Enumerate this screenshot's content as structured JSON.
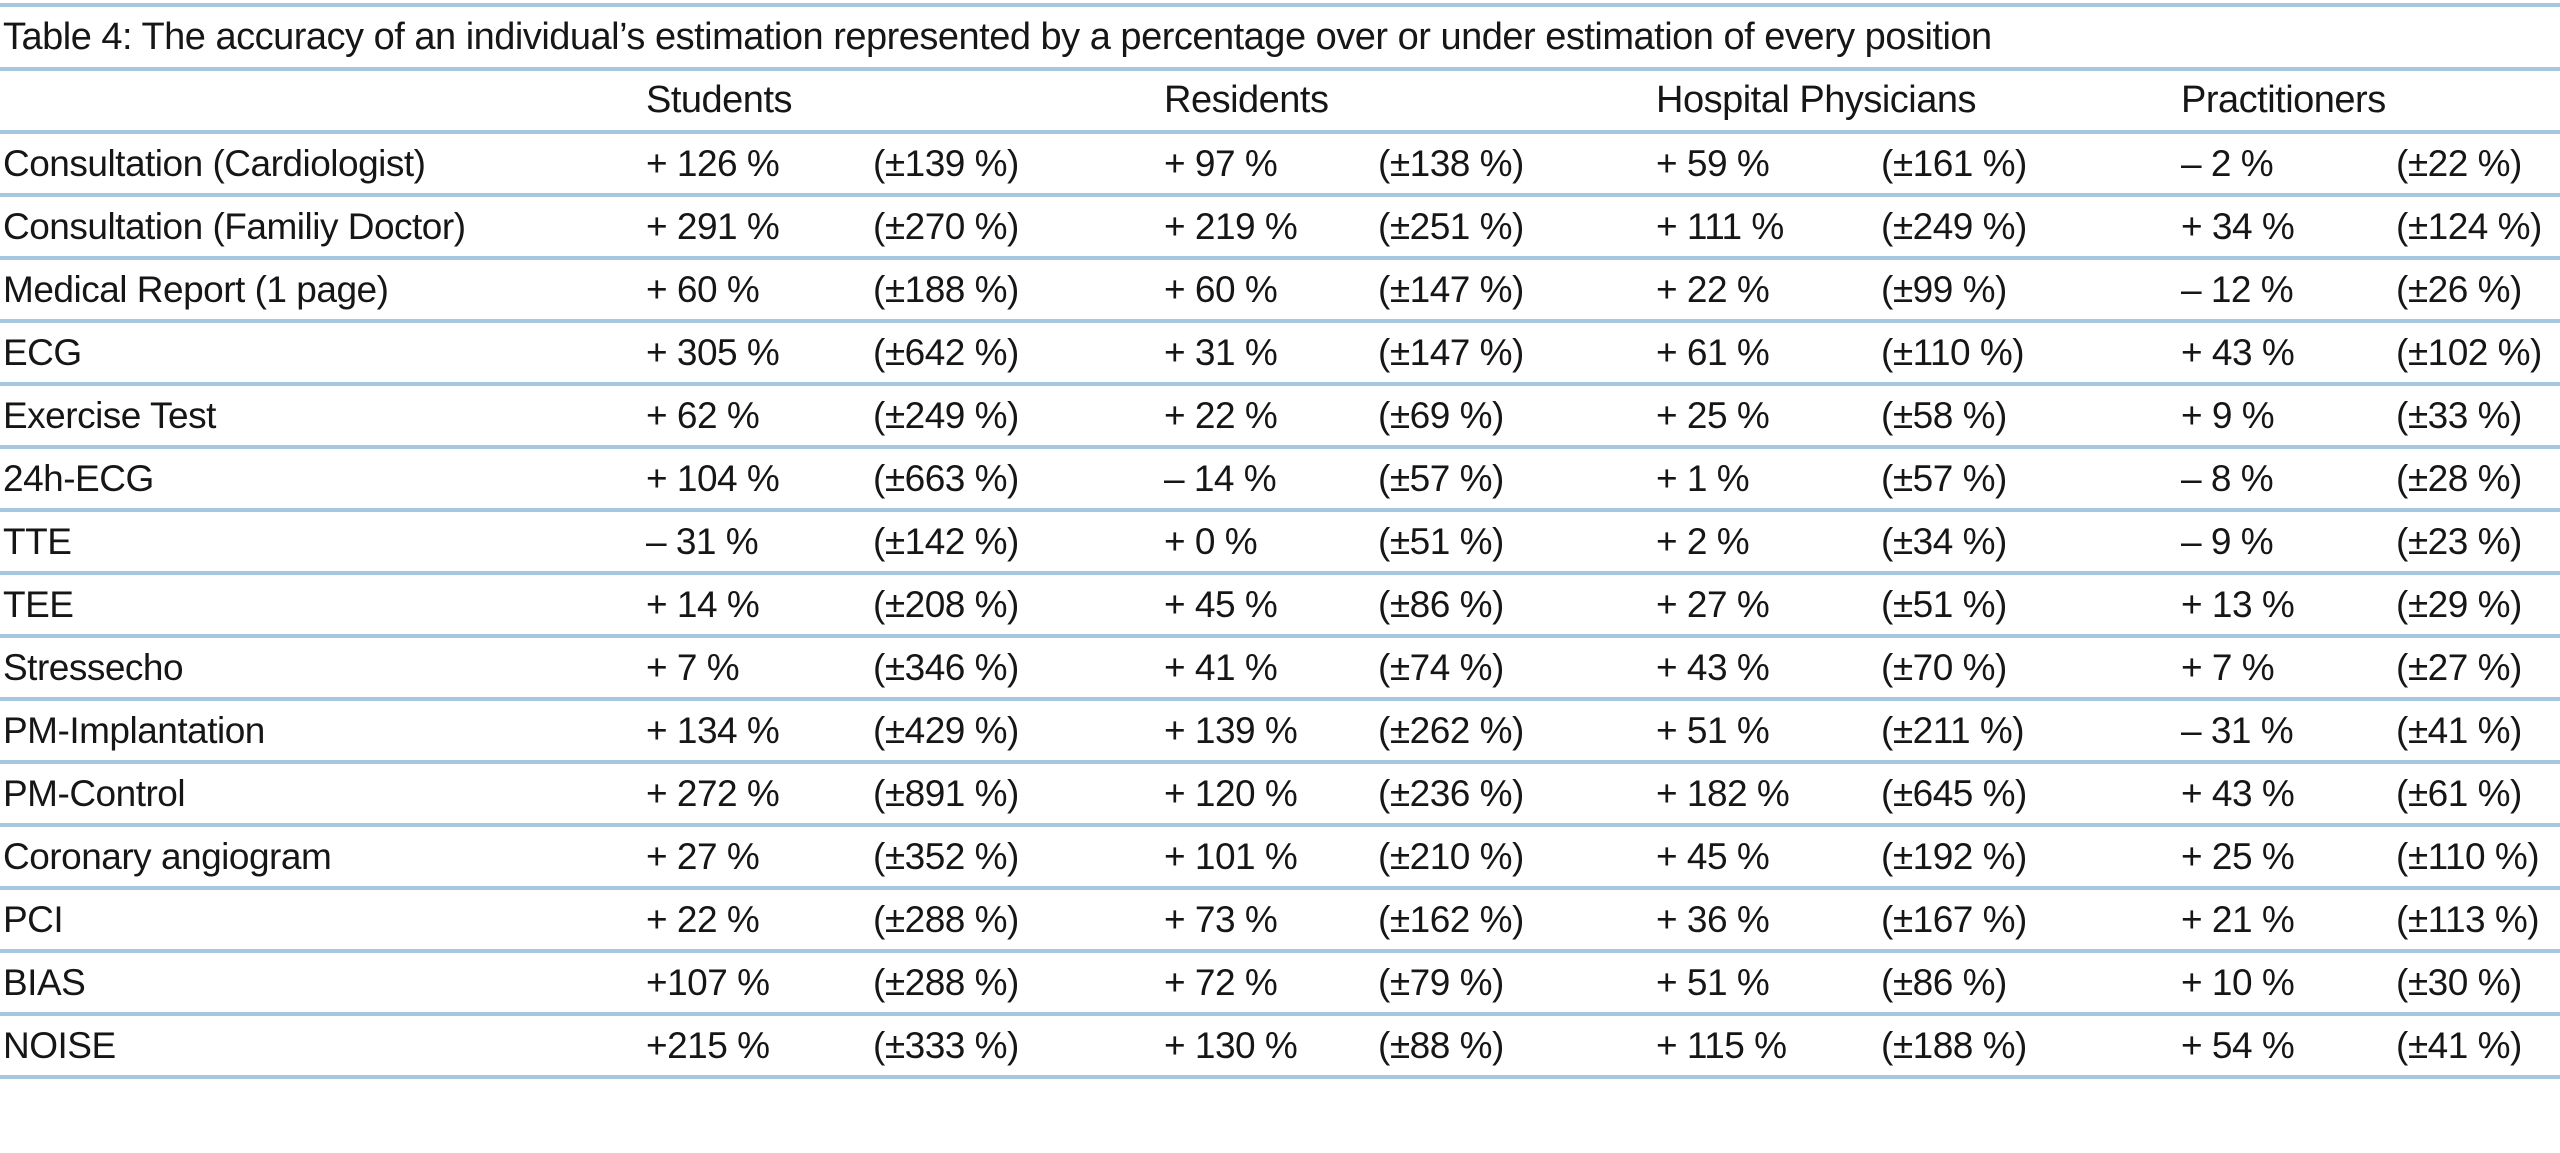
{
  "style": {
    "rule_color": "#a6c7e0",
    "text_color": "#161616",
    "background": "#ffffff"
  },
  "table": {
    "caption": "Table 4: The accuracy of an individual’s estimation represented by a percentage over or under estimation of every position",
    "column_groups": [
      "Students",
      "Residents",
      "Hospital Physicians",
      "Practitioners"
    ],
    "value_pair_structure": [
      "mean estimation error",
      "spread (± percent)"
    ],
    "rows": [
      {
        "label": "Consultation (Cardiologist)",
        "cells": [
          "+ 126 %",
          "(±139 %)",
          "+ 97 %",
          "(±138 %)",
          "+ 59 %",
          "(±161 %)",
          "– 2 %",
          "(±22 %)"
        ]
      },
      {
        "label": "Consultation (Familiy Doctor)",
        "cells": [
          "+ 291 %",
          "(±270 %)",
          "+ 219 %",
          "(±251 %)",
          "+ 111 %",
          "(±249 %)",
          "+ 34 %",
          "(±124 %)"
        ]
      },
      {
        "label": "Medical Report (1 page)",
        "cells": [
          "+ 60 %",
          "(±188 %)",
          "+ 60 %",
          "(±147 %)",
          "+ 22 %",
          "(±99 %)",
          "– 12 %",
          "(±26 %)"
        ]
      },
      {
        "label": "ECG",
        "cells": [
          "+ 305 %",
          "(±642 %)",
          "+ 31 %",
          "(±147 %)",
          "+ 61 %",
          "(±110 %)",
          "+ 43 %",
          "(±102 %)"
        ]
      },
      {
        "label": "Exercise Test",
        "cells": [
          "+ 62 %",
          "(±249 %)",
          "+ 22 %",
          "(±69 %)",
          "+ 25 %",
          "(±58 %)",
          "+ 9 %",
          "(±33 %)"
        ]
      },
      {
        "label": "24h-ECG",
        "cells": [
          "+ 104 %",
          "(±663 %)",
          "– 14 %",
          "(±57 %)",
          "+ 1 %",
          "(±57 %)",
          "– 8 %",
          "(±28 %)"
        ]
      },
      {
        "label": "TTE",
        "cells": [
          "– 31 %",
          "(±142 %)",
          "+ 0 %",
          "(±51 %)",
          "+ 2 %",
          "(±34 %)",
          "– 9 %",
          "(±23 %)"
        ]
      },
      {
        "label": "TEE",
        "cells": [
          "+ 14 %",
          "(±208 %)",
          "+ 45 %",
          "(±86 %)",
          "+ 27 %",
          "(±51 %)",
          "+ 13 %",
          "(±29 %)"
        ]
      },
      {
        "label": "Stressecho",
        "cells": [
          "+ 7 %",
          "(±346 %)",
          "+ 41 %",
          "(±74 %)",
          "+ 43 %",
          "(±70 %)",
          "+ 7 %",
          "(±27 %)"
        ]
      },
      {
        "label": "PM-Implantation",
        "cells": [
          "+ 134 %",
          "(±429 %)",
          "+ 139 %",
          "(±262 %)",
          "+ 51 %",
          "(±211 %)",
          "– 31 %",
          "(±41 %)"
        ]
      },
      {
        "label": "PM-Control",
        "cells": [
          "+ 272 %",
          "(±891 %)",
          "+ 120 %",
          "(±236 %)",
          "+ 182 %",
          "(±645 %)",
          "+ 43 %",
          "(±61 %)"
        ]
      },
      {
        "label": "Coronary angiogram",
        "cells": [
          "+ 27 %",
          "(±352 %)",
          "+ 101 %",
          "(±210 %)",
          "+ 45 %",
          "(±192 %)",
          "+ 25 %",
          "(±110 %)"
        ]
      },
      {
        "label": "PCI",
        "cells": [
          "+ 22 %",
          "(±288 %)",
          "+ 73 %",
          "(±162 %)",
          "+ 36 %",
          "(±167 %)",
          "+ 21 %",
          "(±113 %)"
        ]
      },
      {
        "label": "BIAS",
        "cells": [
          "+107 %",
          "(±288 %)",
          "+ 72 %",
          "(±79 %)",
          "+ 51 %",
          "(±86 %)",
          "+ 10 %",
          "(±30 %)"
        ]
      },
      {
        "label": "NOISE",
        "cells": [
          "+215 %",
          "(±333 %)",
          "+ 130 %",
          "(±88 %)",
          "+ 115 %",
          "(±188 %)",
          "+ 54 %",
          "(±41 %)"
        ]
      }
    ]
  }
}
